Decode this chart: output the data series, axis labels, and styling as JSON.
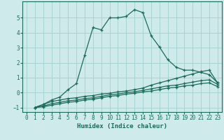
{
  "xlabel": "Humidex (Indice chaleur)",
  "bg_color": "#ceeaea",
  "grid_color": "#a8d4d4",
  "line_color": "#1a6b5a",
  "xlim": [
    -0.5,
    23.5
  ],
  "ylim": [
    -1.3,
    6.1
  ],
  "yticks": [
    -1,
    0,
    1,
    2,
    3,
    4,
    5
  ],
  "xticks": [
    0,
    1,
    2,
    3,
    4,
    5,
    6,
    7,
    8,
    9,
    10,
    11,
    12,
    13,
    14,
    15,
    16,
    17,
    18,
    19,
    20,
    21,
    22,
    23
  ],
  "line1_x": [
    1,
    2,
    3,
    4,
    5,
    6,
    7,
    8,
    9,
    10,
    11,
    12,
    13,
    14,
    15,
    16,
    17,
    18,
    19,
    20,
    21,
    22,
    23
  ],
  "line1_y": [
    -1.0,
    -0.8,
    -0.5,
    -0.3,
    0.2,
    0.6,
    2.5,
    4.35,
    4.2,
    5.0,
    5.0,
    5.1,
    5.55,
    5.35,
    3.8,
    3.05,
    2.2,
    1.7,
    1.5,
    1.5,
    1.35,
    1.2,
    0.65
  ],
  "line2_x": [
    1,
    2,
    3,
    4,
    5,
    6,
    7,
    8,
    9,
    10,
    11,
    12,
    13,
    14,
    15,
    16,
    17,
    18,
    19,
    20,
    21,
    22,
    23
  ],
  "line2_y": [
    -1.0,
    -0.8,
    -0.6,
    -0.5,
    -0.4,
    -0.35,
    -0.25,
    -0.2,
    -0.1,
    -0.05,
    0.05,
    0.1,
    0.2,
    0.3,
    0.5,
    0.65,
    0.8,
    0.95,
    1.1,
    1.25,
    1.4,
    1.5,
    0.65
  ],
  "line3_x": [
    1,
    2,
    3,
    4,
    5,
    6,
    7,
    8,
    9,
    10,
    11,
    12,
    13,
    14,
    15,
    16,
    17,
    18,
    19,
    20,
    21,
    22,
    23
  ],
  "line3_y": [
    -1.0,
    -0.9,
    -0.75,
    -0.65,
    -0.55,
    -0.5,
    -0.4,
    -0.35,
    -0.25,
    -0.15,
    -0.1,
    0.0,
    0.05,
    0.15,
    0.25,
    0.35,
    0.45,
    0.5,
    0.6,
    0.7,
    0.8,
    0.85,
    0.55
  ],
  "line4_x": [
    1,
    2,
    3,
    4,
    5,
    6,
    7,
    8,
    9,
    10,
    11,
    12,
    13,
    14,
    15,
    16,
    17,
    18,
    19,
    20,
    21,
    22,
    23
  ],
  "line4_y": [
    -1.0,
    -0.95,
    -0.85,
    -0.75,
    -0.65,
    -0.6,
    -0.5,
    -0.45,
    -0.35,
    -0.25,
    -0.2,
    -0.1,
    -0.05,
    0.05,
    0.1,
    0.2,
    0.3,
    0.35,
    0.45,
    0.5,
    0.6,
    0.65,
    0.4
  ]
}
